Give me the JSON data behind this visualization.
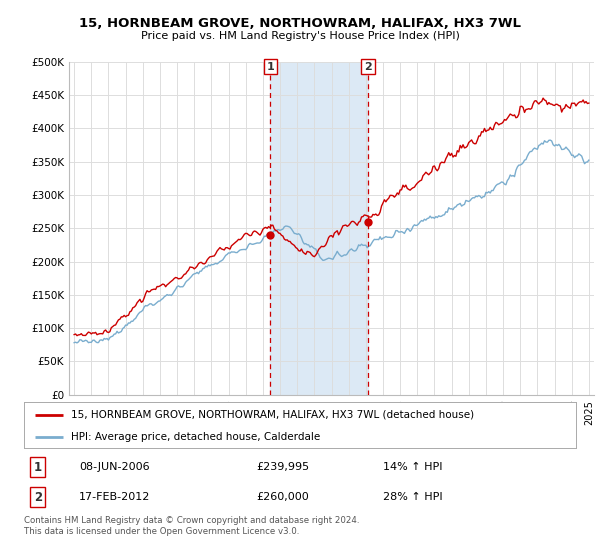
{
  "title": "15, HORNBEAM GROVE, NORTHOWRAM, HALIFAX, HX3 7WL",
  "subtitle": "Price paid vs. HM Land Registry's House Price Index (HPI)",
  "legend_line1": "15, HORNBEAM GROVE, NORTHOWRAM, HALIFAX, HX3 7WL (detached house)",
  "legend_line2": "HPI: Average price, detached house, Calderdale",
  "table_row1_num": "1",
  "table_row1_date": "08-JUN-2006",
  "table_row1_price": "£239,995",
  "table_row1_hpi": "14% ↑ HPI",
  "table_row2_num": "2",
  "table_row2_date": "17-FEB-2012",
  "table_row2_price": "£260,000",
  "table_row2_hpi": "28% ↑ HPI",
  "footer": "Contains HM Land Registry data © Crown copyright and database right 2024.\nThis data is licensed under the Open Government Licence v3.0.",
  "yticks": [
    0,
    50000,
    100000,
    150000,
    200000,
    250000,
    300000,
    350000,
    400000,
    450000,
    500000
  ],
  "red_color": "#cc0000",
  "blue_color": "#7aadce",
  "bg_color": "#dce9f5",
  "sale1_x": 2006.44,
  "sale1_y": 239995,
  "sale2_x": 2012.12,
  "sale2_y": 260000,
  "xmin": 1995,
  "xmax": 2025
}
